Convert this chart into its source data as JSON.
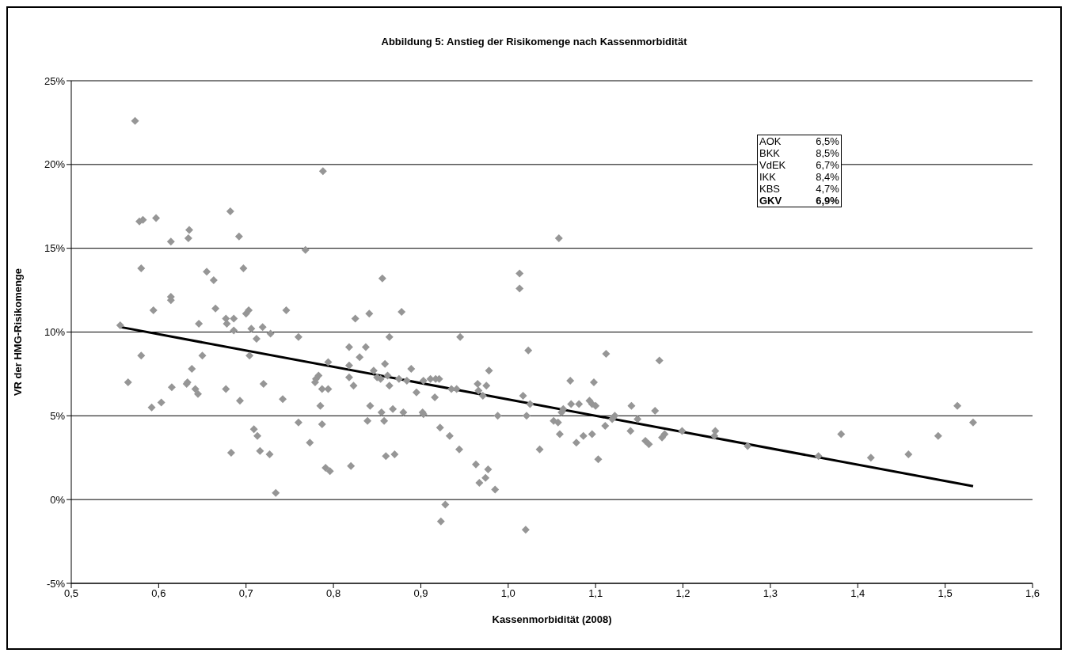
{
  "chart_data": {
    "type": "scatter",
    "title": "Abbildung 5: Anstieg der Risikomenge nach Kassenmorbidität",
    "xlabel": "Kassenmorbidität (2008)",
    "ylabel": "VR der HMG-Risikomenge",
    "xlim": [
      0.5,
      1.6
    ],
    "xticks": [
      {
        "value": 0.5,
        "label": "0,5"
      },
      {
        "value": 0.6,
        "label": "0,6"
      },
      {
        "value": 0.7,
        "label": "0,7"
      },
      {
        "value": 0.8,
        "label": "0,8"
      },
      {
        "value": 0.9,
        "label": "0,9"
      },
      {
        "value": 1.0,
        "label": "1,0"
      },
      {
        "value": 1.1,
        "label": "1,1"
      },
      {
        "value": 1.2,
        "label": "1,2"
      },
      {
        "value": 1.3,
        "label": "1,3"
      },
      {
        "value": 1.4,
        "label": "1,4"
      },
      {
        "value": 1.5,
        "label": "1,5"
      },
      {
        "value": 1.6,
        "label": "1,6"
      }
    ],
    "ylim": [
      -5,
      25
    ],
    "yticks": [
      {
        "value": -5,
        "label": "-5%"
      },
      {
        "value": 0,
        "label": "0%"
      },
      {
        "value": 5,
        "label": "5%"
      },
      {
        "value": 10,
        "label": "10%"
      },
      {
        "value": 15,
        "label": "15%"
      },
      {
        "value": 20,
        "label": "20%"
      },
      {
        "value": 25,
        "label": "25%"
      }
    ],
    "grid": "y",
    "legend": false,
    "annotations": [
      "AOK 6,5%",
      "BKK 8,5%",
      "VdEK 6,7%",
      "IKK 8,4%",
      "KBS 4,7%",
      "GKV 6,9%"
    ],
    "series": [
      {
        "color": "#969696",
        "marker": "diamond",
        "x": [
          0.556,
          0.565,
          0.573,
          0.578,
          0.582,
          0.58,
          0.58,
          0.592,
          0.594,
          0.597,
          0.603,
          0.614,
          0.614,
          0.614,
          0.615,
          0.632,
          0.633,
          0.635,
          0.634,
          0.638,
          0.642,
          0.645,
          0.646,
          0.65,
          0.655,
          0.663,
          0.665,
          0.677,
          0.677,
          0.678,
          0.682,
          0.683,
          0.686,
          0.686,
          0.692,
          0.693,
          0.697,
          0.7,
          0.703,
          0.704,
          0.706,
          0.709,
          0.712,
          0.713,
          0.716,
          0.719,
          0.72,
          0.727,
          0.728,
          0.734,
          0.742,
          0.746,
          0.76,
          0.76,
          0.768,
          0.773,
          0.779,
          0.78,
          0.783,
          0.785,
          0.787,
          0.788,
          0.787,
          0.791,
          0.794,
          0.794,
          0.796,
          0.818,
          0.818,
          0.818,
          0.82,
          0.823,
          0.825,
          0.83,
          0.837,
          0.839,
          0.841,
          0.842,
          0.846,
          0.85,
          0.854,
          0.855,
          0.856,
          0.858,
          0.859,
          0.86,
          0.862,
          0.864,
          0.864,
          0.868,
          0.87,
          0.875,
          0.878,
          0.88,
          0.884,
          0.889,
          0.895,
          0.902,
          0.903,
          0.903,
          0.911,
          0.916,
          0.917,
          0.921,
          0.922,
          0.923,
          0.928,
          0.933,
          0.935,
          0.941,
          0.944,
          0.945,
          0.963,
          0.965,
          0.966,
          0.967,
          0.971,
          0.974,
          0.975,
          0.977,
          0.978,
          0.985,
          0.988,
          1.013,
          1.013,
          1.017,
          1.021,
          1.02,
          1.023,
          1.025,
          1.036,
          1.052,
          1.057,
          1.058,
          1.059,
          1.061,
          1.063,
          1.071,
          1.072,
          1.078,
          1.081,
          1.086,
          1.093,
          1.096,
          1.096,
          1.098,
          1.1,
          1.103,
          1.111,
          1.112,
          1.119,
          1.122,
          1.14,
          1.141,
          1.148,
          1.157,
          1.161,
          1.168,
          1.173,
          1.176,
          1.179,
          1.199,
          1.236,
          1.237,
          1.274,
          1.355,
          1.381,
          1.415,
          1.458,
          1.492,
          1.514,
          1.532
        ],
        "values": [
          10.4,
          7.0,
          22.6,
          16.6,
          16.7,
          13.8,
          8.6,
          5.5,
          11.3,
          16.8,
          5.8,
          12.1,
          11.9,
          15.4,
          6.7,
          6.9,
          7.0,
          16.1,
          15.6,
          7.8,
          6.6,
          6.3,
          10.5,
          8.6,
          13.6,
          13.1,
          11.4,
          10.8,
          6.6,
          10.5,
          17.2,
          2.8,
          10.8,
          10.1,
          15.7,
          5.9,
          13.8,
          11.1,
          11.3,
          8.6,
          10.2,
          4.2,
          9.6,
          3.8,
          2.9,
          10.3,
          6.9,
          2.7,
          9.9,
          0.4,
          6.0,
          11.3,
          4.6,
          9.7,
          14.9,
          3.4,
          7.0,
          7.2,
          7.4,
          5.6,
          6.6,
          19.6,
          4.5,
          1.9,
          8.2,
          6.6,
          1.7,
          9.1,
          8.0,
          7.3,
          2.0,
          6.8,
          10.8,
          8.5,
          9.1,
          4.7,
          11.1,
          5.6,
          7.7,
          7.3,
          7.2,
          5.2,
          13.2,
          4.7,
          8.1,
          2.6,
          7.4,
          6.8,
          9.7,
          5.4,
          2.7,
          7.2,
          11.2,
          5.2,
          7.1,
          7.8,
          6.4,
          5.2,
          7.1,
          5.1,
          7.2,
          6.1,
          7.2,
          7.2,
          4.3,
          -1.3,
          -0.3,
          3.8,
          6.6,
          6.6,
          3.0,
          9.7,
          2.1,
          6.9,
          6.5,
          1.0,
          6.2,
          1.3,
          6.8,
          1.8,
          7.7,
          0.6,
          5.0,
          12.6,
          13.5,
          6.2,
          5.0,
          -1.8,
          8.9,
          5.7,
          3.0,
          4.7,
          4.6,
          15.6,
          3.9,
          5.2,
          5.4,
          7.1,
          5.7,
          3.4,
          5.7,
          3.8,
          5.9,
          3.9,
          5.7,
          7.0,
          5.6,
          2.4,
          4.4,
          8.7,
          4.8,
          5.0,
          4.1,
          5.6,
          4.8,
          3.5,
          3.3,
          5.3,
          8.3,
          3.7,
          3.9,
          4.1,
          3.8,
          4.1,
          3.2,
          2.6,
          3.9,
          2.5,
          2.7,
          3.8,
          5.6,
          4.6
        ]
      },
      {
        "type": "line",
        "color": "#000000",
        "line_style": "solid",
        "x": [
          0.556,
          1.532
        ],
        "values": [
          10.3,
          0.8
        ]
      }
    ]
  }
}
